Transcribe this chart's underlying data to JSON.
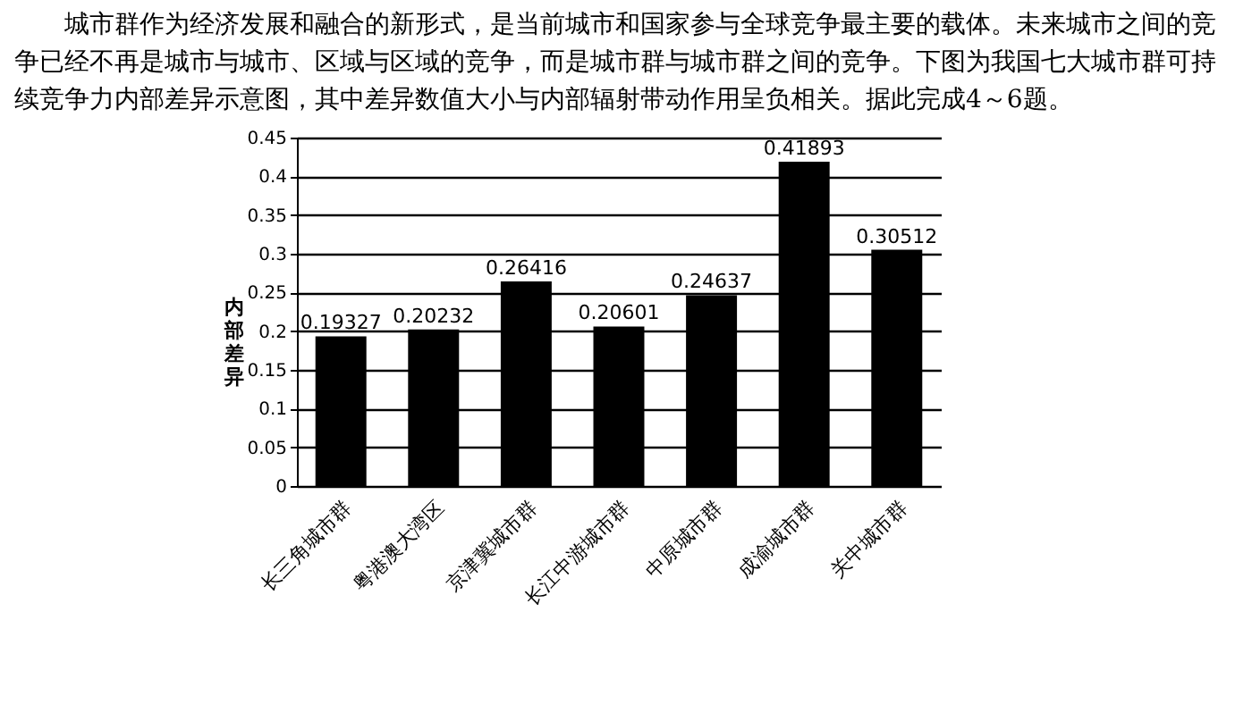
{
  "chart_data": {
    "type": "bar",
    "annotations": [
      "城市群作为经济发展和融合的新形式，是当前城市和国家参与全球竞争最主要的载体。未来城市之间的竞争已经不再是城市与城市、区域与区域的竞争，而是城市群与城市群之间的竞争。下图为我国七大城市群可持续竞争力内部差异示意图，其中差异数值大小与内部辐射带动作用呈负相关。据此完成4～6题。"
    ],
    "ylabel": "内部差异",
    "categories": [
      "长三角城市群",
      "粤港澳大湾区",
      "京津冀城市群",
      "长江中游城市群",
      "中原城市群",
      "成渝城市群",
      "关中城市群"
    ],
    "values": [
      0.19327,
      0.20232,
      0.26416,
      0.20601,
      0.24637,
      0.41893,
      0.30512
    ],
    "color": "#000000",
    "ylim": [
      0,
      0.45
    ],
    "yticks": [
      0,
      0.05,
      0.1,
      0.15,
      0.2,
      0.25,
      0.3,
      0.35,
      0.4,
      0.45
    ],
    "grid": "y",
    "data_labels": true
  }
}
